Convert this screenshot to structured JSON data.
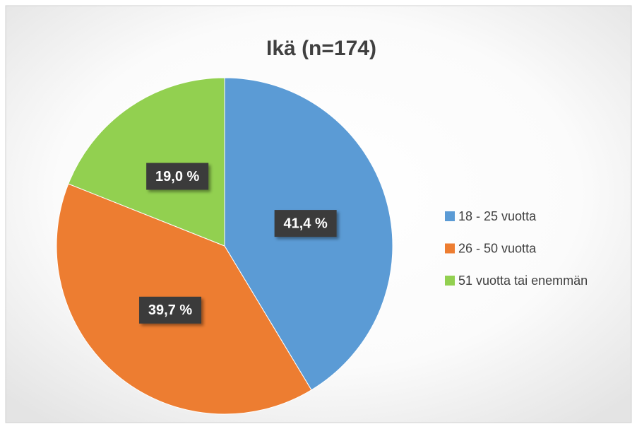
{
  "chart_data": {
    "type": "pie",
    "title": "Ikä (n=174)",
    "categories": [
      "18 - 25 vuotta",
      "26 - 50 vuotta",
      "51 vuotta tai enemmän"
    ],
    "values": [
      41.4,
      39.7,
      19.0
    ],
    "value_labels": [
      "41,4 %",
      "39,7 %",
      "19,0 %"
    ],
    "colors": [
      "#5b9bd5",
      "#ed7d31",
      "#92d050"
    ],
    "legend": "right"
  }
}
